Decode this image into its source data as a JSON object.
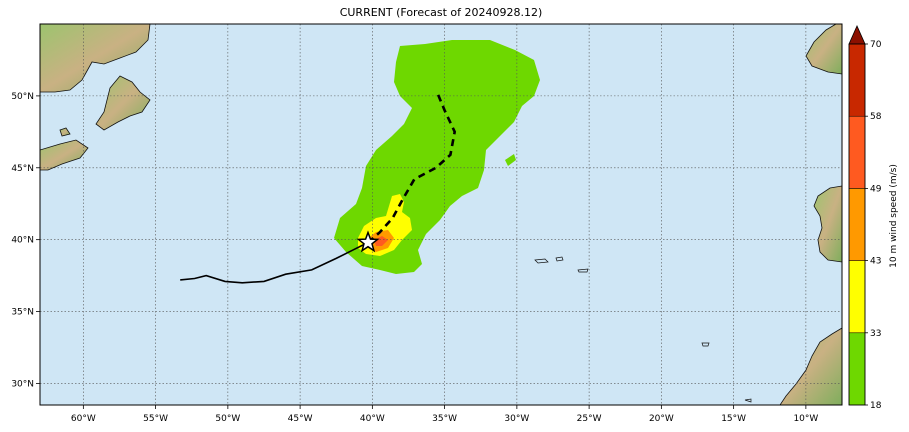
{
  "title": "CURRENT (Forecast of 20240928.12)",
  "map": {
    "lon_range": [
      -63,
      -7.5
    ],
    "lat_range": [
      28.5,
      55
    ],
    "lon_ticks": [
      "60°W",
      "55°W",
      "50°W",
      "45°W",
      "40°W",
      "35°W",
      "30°W",
      "25°W",
      "20°W",
      "15°W",
      "10°W"
    ],
    "lat_ticks": [
      "30°N",
      "35°N",
      "40°N",
      "45°N",
      "50°N"
    ],
    "grid": true,
    "ocean_color": "#cfe6f5",
    "storm_marker_lon": -40.3,
    "storm_marker_lat": 39.8,
    "past_track": [
      [
        -53.3,
        37.2
      ],
      [
        -52.3,
        37.3
      ],
      [
        -51.5,
        37.5
      ],
      [
        -50.2,
        37.1
      ],
      [
        -49,
        37.0
      ],
      [
        -47.5,
        37.1
      ],
      [
        -46,
        37.6
      ],
      [
        -44.2,
        37.9
      ],
      [
        -42.5,
        38.7
      ],
      [
        -41.3,
        39.3
      ],
      [
        -40.3,
        39.8
      ]
    ],
    "forecast_track": [
      [
        -40.3,
        39.8
      ],
      [
        -39.5,
        40.5
      ],
      [
        -38.6,
        41.5
      ],
      [
        -37.9,
        42.8
      ],
      [
        -37.1,
        44.2
      ],
      [
        -35.6,
        45.0
      ],
      [
        -34.6,
        45.9
      ],
      [
        -34.3,
        47.5
      ],
      [
        -35.0,
        49.0
      ],
      [
        -35.5,
        50.2
      ]
    ]
  },
  "colorbar": {
    "label": "10 m wind speed (m/s)",
    "ticks": [
      "18",
      "33",
      "43",
      "49",
      "58",
      "70"
    ],
    "colors": [
      "#6ed800",
      "#ffff00",
      "#ff9900",
      "#ff5a20",
      "#c82800"
    ],
    "extend_color": "#8b1000"
  }
}
